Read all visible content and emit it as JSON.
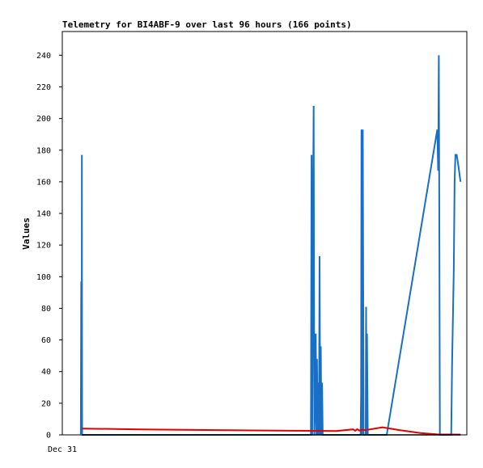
{
  "chart_data": {
    "type": "line",
    "title": "Telemetry for BI4ABF-9 over last 96 hours (166 points)",
    "ylabel": "Values",
    "xlabel": "",
    "x_tick_labels": [
      "Dec 31"
    ],
    "ylim": [
      0,
      255
    ],
    "xlim": [
      0,
      96
    ],
    "y_ticks": [
      0,
      20,
      40,
      60,
      80,
      100,
      120,
      140,
      160,
      180,
      200,
      220,
      240
    ],
    "grid": false,
    "series": [
      {
        "color": "#1a6fc4",
        "x": [
          4.4,
          4.5,
          4.6,
          4.65,
          4.7,
          59.0,
          59.15,
          59.3,
          59.45,
          59.55,
          59.65,
          59.8,
          60.0,
          60.15,
          60.3,
          60.45,
          60.6,
          60.75,
          60.9,
          61.05,
          61.2,
          61.35,
          61.5,
          61.65,
          61.8,
          70.8,
          70.9,
          71.0,
          71.1,
          71.2,
          71.3,
          71.4,
          71.5,
          72.0,
          72.1,
          72.2,
          72.3,
          72.4,
          72.5,
          77.0,
          89.0,
          89.2,
          89.35,
          89.5,
          89.6,
          92.3,
          92.5,
          92.7,
          92.9,
          93.1,
          93.3,
          93.6,
          94.0,
          94.5
        ],
        "y": [
          0,
          97,
          0,
          177,
          0,
          0,
          177,
          0,
          88,
          168,
          208,
          0,
          18,
          64,
          0,
          48,
          0,
          33,
          0,
          113,
          0,
          56,
          0,
          33,
          0,
          0,
          25,
          193,
          0,
          50,
          193,
          97,
          0,
          0,
          81,
          0,
          64,
          32,
          0,
          0,
          193,
          167,
          240,
          120,
          0,
          0,
          45,
          73,
          105,
          160,
          177,
          177,
          170,
          160
        ]
      },
      {
        "color": "#e00000",
        "x": [
          4.6,
          18.5,
          45.0,
          65.0,
          69.0,
          69.5,
          70.0,
          70.5,
          71.0,
          72.0,
          76.0,
          80.0,
          85.0,
          89.0,
          94.5
        ],
        "y": [
          4,
          3.5,
          2.8,
          2.4,
          3.5,
          2.6,
          3.6,
          2.7,
          3.2,
          3.0,
          4.8,
          3.0,
          1.2,
          0.3,
          0.2
        ]
      },
      {
        "color": "#000000",
        "x": [
          4.6,
          94.5
        ],
        "y": [
          0,
          0
        ]
      }
    ]
  }
}
